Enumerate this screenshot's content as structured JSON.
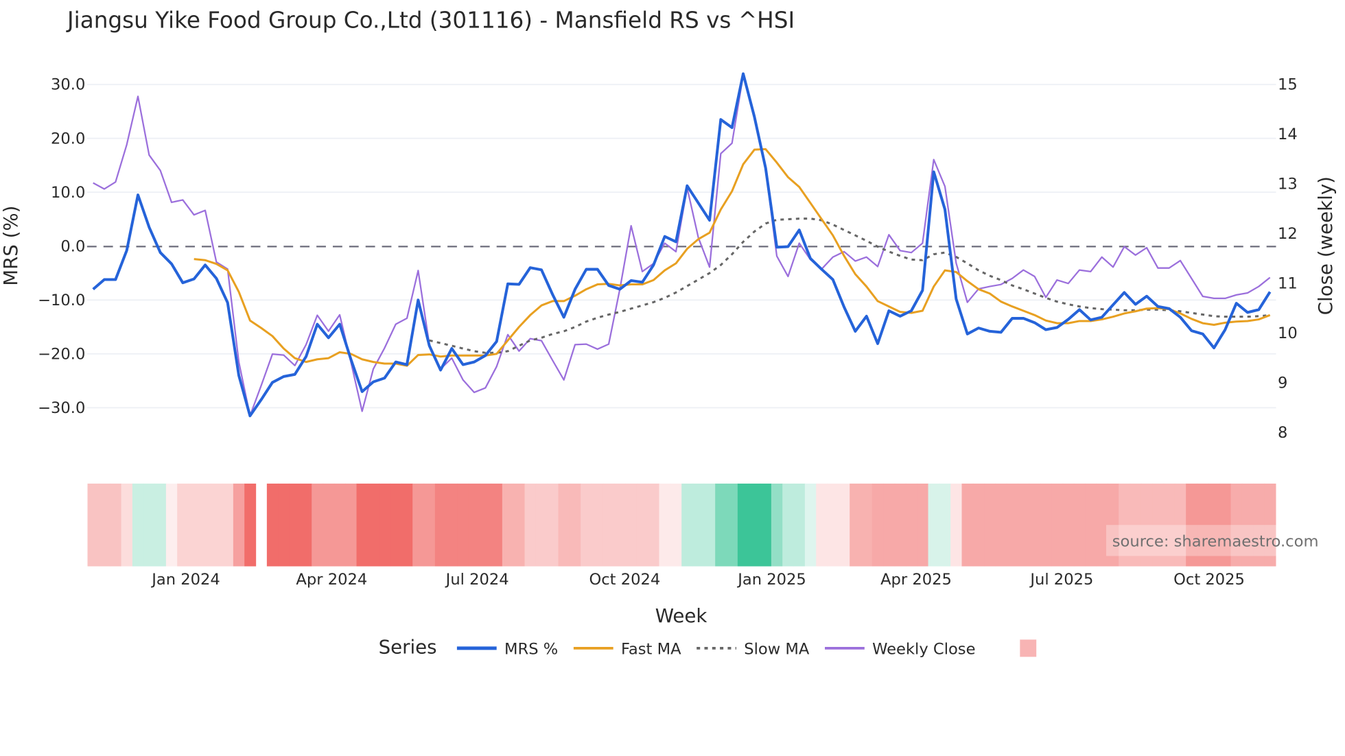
{
  "chart_data": {
    "type": "line",
    "title": "Jiangsu Yike Food Group Co.,Ltd (301116) - Mansfield RS vs ^HSI",
    "xlabel": "Week",
    "ylabel": "MRS (%)",
    "y2label": "Close (weekly)",
    "ylim": [
      -33,
      33
    ],
    "y2lim": [
      7.9,
      15.25
    ],
    "yticks": [
      30,
      20,
      10,
      0,
      -10,
      -20,
      -30
    ],
    "ytick_labels": [
      "30.0",
      "20.0",
      "10.0",
      "0.0",
      "−10.0",
      "−20.0",
      "−30.0"
    ],
    "y2ticks": [
      15,
      14,
      13,
      12,
      11,
      10,
      9,
      8
    ],
    "y2tick_labels": [
      "15",
      "14",
      "13",
      "12",
      "11",
      "10",
      "9",
      "8"
    ],
    "x_start": "2023-11-04",
    "x_step_days": 7,
    "xticks": [
      {
        "date": "2024-01-01",
        "label": "Jan 2024"
      },
      {
        "date": "2024-04-01",
        "label": "Apr 2024"
      },
      {
        "date": "2024-07-01",
        "label": "Jul 2024"
      },
      {
        "date": "2024-10-01",
        "label": "Oct 2024"
      },
      {
        "date": "2025-01-01",
        "label": "Jan 2025"
      },
      {
        "date": "2025-04-01",
        "label": "Apr 2025"
      },
      {
        "date": "2025-07-01",
        "label": "Jul 2025"
      },
      {
        "date": "2025-10-01",
        "label": "Oct 2025"
      }
    ],
    "zero_line": 0,
    "grid": true,
    "legend_title": "Series",
    "legend_position": "bottom",
    "series": [
      {
        "name": "MRS %",
        "axis": "y",
        "color": "#2563d9",
        "style": "solid",
        "values": [
          -8,
          -6.2,
          -6.2,
          -0.8,
          9.5,
          3.5,
          -1.2,
          -3.3,
          -6.8,
          -6.1,
          -3.5,
          -6,
          -10.5,
          -24,
          -31.5,
          -28.5,
          -25.3,
          -24.2,
          -23.8,
          -20.5,
          -14.5,
          -17,
          -14.5,
          -21,
          -27,
          -25.2,
          -24.5,
          -21.5,
          -22,
          -10,
          -18.5,
          -23,
          -19,
          -22,
          -21.5,
          -20.3,
          -17.7,
          -7,
          -7.1,
          -4,
          -4.4,
          -9,
          -13.2,
          -8,
          -4.3,
          -4.3,
          -7.3,
          -8,
          -6.4,
          -6.7,
          -3.5,
          1.8,
          0.8,
          11.2,
          8,
          4.8,
          23.5,
          22,
          32,
          24,
          14.5,
          -0.2,
          -0.1,
          3,
          -2.3,
          -4.3,
          -6.2,
          -11.3,
          -15.8,
          -13,
          -18.1,
          -12,
          -13,
          -12,
          -8.2,
          13.8,
          6.8,
          -9.8,
          -16.3,
          -15.2,
          -15.8,
          -16,
          -13.4,
          -13.4,
          -14.2,
          -15.5,
          -15.1,
          -13.6,
          -11.8,
          -13.7,
          -13.2,
          -10.9,
          -8.6,
          -10.8,
          -9.3,
          -11.2,
          -11.6,
          -13.2,
          -15.7,
          -16.3,
          -18.9,
          -15.5,
          -10.6,
          -12.3,
          -11.8,
          -8.5
        ]
      },
      {
        "name": "Fast MA",
        "axis": "y",
        "color": "#e8a021",
        "style": "solid",
        "values": [
          null,
          null,
          null,
          null,
          null,
          null,
          null,
          null,
          null,
          -2.4,
          -2.6,
          -3.3,
          -4.5,
          -8.5,
          -13.8,
          -15.2,
          -16.7,
          -19,
          -20.8,
          -21.5,
          -21,
          -20.8,
          -19.7,
          -20,
          -21,
          -21.5,
          -21.8,
          -21.8,
          -22.2,
          -20.2,
          -20.1,
          -20.5,
          -20.3,
          -20.3,
          -20.3,
          -20.3,
          -20,
          -17.5,
          -15,
          -12.8,
          -11,
          -10.2,
          -10.2,
          -9.2,
          -8,
          -7.1,
          -7,
          -7.3,
          -7.1,
          -7.1,
          -6.3,
          -4.5,
          -3.2,
          -0.5,
          1.3,
          2.5,
          6.8,
          10.2,
          15.2,
          17.9,
          18,
          15.5,
          12.8,
          11,
          8,
          5,
          2,
          -1.8,
          -5.2,
          -7.5,
          -10.2,
          -11.2,
          -12.2,
          -12.4,
          -12,
          -7.5,
          -4.5,
          -4.8,
          -6.5,
          -8,
          -8.8,
          -10.3,
          -11.2,
          -12,
          -12.8,
          -13.8,
          -14.3,
          -14.3,
          -13.9,
          -13.9,
          -13.6,
          -13.1,
          -12.5,
          -12.1,
          -11.6,
          -11.5,
          -11.7,
          -12.5,
          -13.5,
          -14.3,
          -14.6,
          -14.2,
          -14,
          -13.9,
          -13.6,
          -12.8
        ]
      },
      {
        "name": "Slow MA",
        "axis": "y",
        "color": "#666666",
        "style": "dotted",
        "values": [
          null,
          null,
          null,
          null,
          null,
          null,
          null,
          null,
          null,
          null,
          null,
          null,
          null,
          null,
          null,
          null,
          null,
          null,
          null,
          null,
          null,
          null,
          null,
          null,
          null,
          null,
          null,
          null,
          null,
          null,
          -17.5,
          -18,
          -18.5,
          -19,
          -19.5,
          -19.8,
          -19.8,
          -19.5,
          -18.5,
          -17.5,
          -17,
          -16.3,
          -15.8,
          -15,
          -14,
          -13.3,
          -12.7,
          -12.2,
          -11.6,
          -11,
          -10.4,
          -9.6,
          -8.6,
          -7.4,
          -6.2,
          -5,
          -3.5,
          -1.5,
          0.8,
          2.7,
          4.2,
          4.9,
          5,
          5.1,
          5.1,
          4.8,
          4,
          3,
          2,
          1,
          -0.1,
          -1,
          -1.8,
          -2.5,
          -2.6,
          -1.5,
          -1.2,
          -2,
          -3.2,
          -4.5,
          -5.5,
          -6.3,
          -7.3,
          -8,
          -8.8,
          -9.6,
          -10.3,
          -10.8,
          -11.2,
          -11.5,
          -11.7,
          -11.8,
          -11.9,
          -11.9,
          -11.8,
          -11.8,
          -11.9,
          -12.1,
          -12.4,
          -12.7,
          -13,
          -13.1,
          -13.1,
          -13.1,
          -13,
          -12.8
        ]
      },
      {
        "name": "Weekly Close",
        "axis": "y2",
        "color": "#9b6fdc",
        "style": "solid",
        "values": [
          13.02,
          12.9,
          13.04,
          13.79,
          14.76,
          13.58,
          13.27,
          12.63,
          12.68,
          12.38,
          12.47,
          11.43,
          11.29,
          9.42,
          8.34,
          8.95,
          9.58,
          9.56,
          9.35,
          9.77,
          10.36,
          10.04,
          10.37,
          9.42,
          8.43,
          9.28,
          9.7,
          10.18,
          10.3,
          11.26,
          9.77,
          9.28,
          9.5,
          9.06,
          8.81,
          8.9,
          9.33,
          9.97,
          9.64,
          9.89,
          9.85,
          9.45,
          9.06,
          9.77,
          9.78,
          9.68,
          9.78,
          10.89,
          12.16,
          11.24,
          11.4,
          11.81,
          11.64,
          12.92,
          11.92,
          11.33,
          13.61,
          13.82,
          15.19,
          14.39,
          13.3,
          11.55,
          11.14,
          11.81,
          11.48,
          11.29,
          11.53,
          11.64,
          11.45,
          11.53,
          11.34,
          11.98,
          11.66,
          11.62,
          11.81,
          13.49,
          12.95,
          11.41,
          10.62,
          10.89,
          10.94,
          10.98,
          11.1,
          11.27,
          11.14,
          10.72,
          11.07,
          11.0,
          11.27,
          11.24,
          11.53,
          11.33,
          11.74,
          11.57,
          11.72,
          11.31,
          11.31,
          11.46,
          11.1,
          10.74,
          10.7,
          10.7,
          10.77,
          10.81,
          10.94,
          11.12
        ]
      }
    ],
    "heatmap": {
      "type": "heatmap",
      "range": [
        -1,
        1
      ],
      "neg_color": "#ef5350",
      "pos_color": "#26bf8c",
      "values": [
        -0.35,
        -0.35,
        -0.35,
        -0.2,
        0.25,
        0.25,
        0.25,
        -0.1,
        -0.25,
        -0.25,
        -0.25,
        -0.25,
        -0.25,
        -0.55,
        -0.85,
        null,
        -0.85,
        -0.85,
        -0.85,
        -0.85,
        -0.6,
        -0.6,
        -0.6,
        -0.6,
        -0.85,
        -0.85,
        -0.85,
        -0.85,
        -0.85,
        -0.6,
        -0.6,
        -0.72,
        -0.72,
        -0.72,
        -0.72,
        -0.72,
        -0.72,
        -0.45,
        -0.45,
        -0.3,
        -0.3,
        -0.3,
        -0.4,
        -0.4,
        -0.3,
        -0.3,
        -0.3,
        -0.3,
        -0.3,
        -0.3,
        -0.3,
        -0.12,
        -0.12,
        0.3,
        0.3,
        0.3,
        0.6,
        0.6,
        0.9,
        0.9,
        0.9,
        0.5,
        0.3,
        0.3,
        0.15,
        -0.15,
        -0.15,
        -0.15,
        -0.45,
        -0.45,
        -0.5,
        -0.5,
        -0.5,
        -0.5,
        -0.5,
        0.18,
        0.18,
        -0.15,
        -0.5,
        -0.5,
        -0.5,
        -0.5,
        -0.5,
        -0.5,
        -0.5,
        -0.5,
        -0.5,
        -0.5,
        -0.5,
        -0.5,
        -0.5,
        -0.5,
        -0.4,
        -0.4,
        -0.4,
        -0.4,
        -0.4,
        -0.4,
        -0.6,
        -0.6,
        -0.6,
        -0.6,
        -0.48,
        -0.48,
        -0.48,
        -0.48
      ]
    },
    "annotation": "source: sharemaestro.com"
  }
}
